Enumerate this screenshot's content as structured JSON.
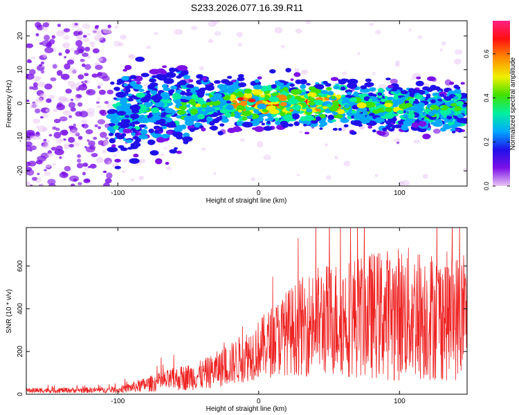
{
  "title": "S233.2026.077.16.39.R11",
  "chart_data": [
    {
      "type": "heatmap",
      "title": "S233.2026.077.16.39.R11",
      "xlabel": "Height of straight line (km)",
      "ylabel": "Frequency (Hz)",
      "xlim": [
        -165,
        148
      ],
      "ylim": [
        -24.5,
        24.5
      ],
      "xticks": [
        -100,
        0,
        100
      ],
      "yticks": [
        -20,
        -10,
        0,
        10,
        20
      ],
      "xtick_labels": [
        "-100",
        "0",
        "100"
      ],
      "ytick_labels": [
        "-20",
        "-10",
        "0",
        "10",
        "20"
      ],
      "colorbar": {
        "label": "Normalized spectral amplitude",
        "range": [
          0.0,
          0.75
        ],
        "ticks": [
          0.0,
          0.2,
          0.4,
          0.6
        ],
        "tick_labels": [
          "0.0",
          "0.2",
          "0.4",
          "0.6"
        ],
        "colormap": [
          "#e8c8f4",
          "#7c10e8",
          "#2010e8",
          "#00a8ff",
          "#00f0a0",
          "#40e000",
          "#f0f000",
          "#ff8800",
          "#ff1010",
          "#ff2080"
        ]
      },
      "signal_band": {
        "x_range": [
          -105,
          148
        ],
        "center_freq": [
          [
            -105,
            -3
          ],
          [
            -60,
            -1
          ],
          [
            -20,
            0
          ],
          [
            0,
            0
          ],
          [
            50,
            0
          ],
          [
            148,
            -2
          ]
        ],
        "peak_region_x": [
          -20,
          60
        ]
      }
    },
    {
      "type": "line",
      "xlabel": "Height of straight line (km)",
      "ylabel": "SNR (10 * v/v)",
      "xlim": [
        -165,
        148
      ],
      "ylim": [
        0,
        780
      ],
      "xticks": [
        -100,
        0,
        100
      ],
      "yticks": [
        0,
        200,
        400,
        600
      ],
      "xtick_labels": [
        "-100",
        "0",
        "100"
      ],
      "ytick_labels": [
        "0",
        "200",
        "400",
        "600"
      ],
      "series": [
        {
          "name": "SNR",
          "color": "#ee2222",
          "envelope": [
            {
              "x": -165,
              "mean": 18,
              "spread": 12
            },
            {
              "x": -100,
              "mean": 20,
              "spread": 14
            },
            {
              "x": -80,
              "mean": 45,
              "spread": 35
            },
            {
              "x": -60,
              "mean": 70,
              "spread": 55
            },
            {
              "x": -40,
              "mean": 90,
              "spread": 70
            },
            {
              "x": -20,
              "mean": 140,
              "spread": 100
            },
            {
              "x": 0,
              "mean": 210,
              "spread": 140
            },
            {
              "x": 20,
              "mean": 290,
              "spread": 200
            },
            {
              "x": 40,
              "mean": 340,
              "spread": 260
            },
            {
              "x": 60,
              "mean": 360,
              "spread": 280
            },
            {
              "x": 80,
              "mean": 370,
              "spread": 300
            },
            {
              "x": 100,
              "mean": 380,
              "spread": 320
            },
            {
              "x": 120,
              "mean": 370,
              "spread": 310
            },
            {
              "x": 148,
              "mean": 360,
              "spread": 300
            }
          ]
        }
      ]
    }
  ]
}
